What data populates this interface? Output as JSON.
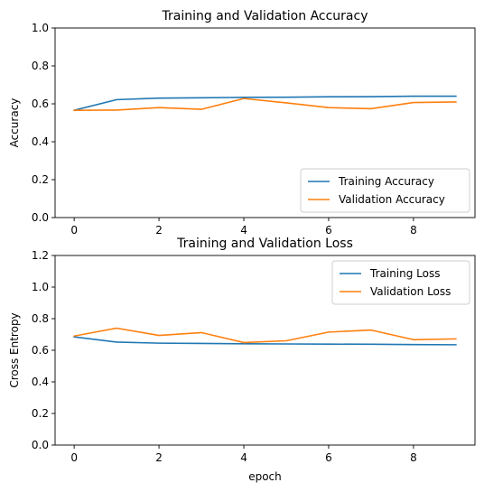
{
  "chart_data": [
    {
      "type": "line",
      "title": "Training and Validation Accuracy",
      "xlabel": "",
      "ylabel": "Accuracy",
      "xlim": [
        -0.45,
        9.45
      ],
      "ylim": [
        0,
        1.0
      ],
      "xticks": [
        0,
        2,
        4,
        6,
        8
      ],
      "yticks": [
        0.0,
        0.2,
        0.4,
        0.6,
        0.8,
        1.0
      ],
      "grid": false,
      "legend_position": "lower-right",
      "x": [
        0,
        1,
        2,
        3,
        4,
        5,
        6,
        7,
        8,
        9
      ],
      "series": [
        {
          "name": "Training Accuracy",
          "color": "#1f77b4",
          "values": [
            0.566,
            0.622,
            0.63,
            0.632,
            0.634,
            0.635,
            0.637,
            0.638,
            0.64,
            0.64
          ]
        },
        {
          "name": "Validation Accuracy",
          "color": "#ff7f0e",
          "values": [
            0.566,
            0.567,
            0.58,
            0.571,
            0.628,
            0.605,
            0.58,
            0.574,
            0.607,
            0.61
          ]
        }
      ]
    },
    {
      "type": "line",
      "title": "Training and Validation Loss",
      "xlabel": "epoch",
      "ylabel": "Cross Entropy",
      "xlim": [
        -0.45,
        9.45
      ],
      "ylim": [
        0,
        1.2
      ],
      "xticks": [
        0,
        2,
        4,
        6,
        8
      ],
      "yticks": [
        0.0,
        0.2,
        0.4,
        0.6,
        0.8,
        1.0,
        1.2
      ],
      "grid": false,
      "legend_position": "upper-right",
      "x": [
        0,
        1,
        2,
        3,
        4,
        5,
        6,
        7,
        8,
        9
      ],
      "series": [
        {
          "name": "Training Loss",
          "color": "#1f77b4",
          "values": [
            0.685,
            0.652,
            0.645,
            0.643,
            0.641,
            0.64,
            0.639,
            0.638,
            0.636,
            0.635
          ]
        },
        {
          "name": "Validation Loss",
          "color": "#ff7f0e",
          "values": [
            0.69,
            0.74,
            0.694,
            0.712,
            0.649,
            0.66,
            0.715,
            0.728,
            0.667,
            0.672
          ]
        }
      ]
    }
  ]
}
